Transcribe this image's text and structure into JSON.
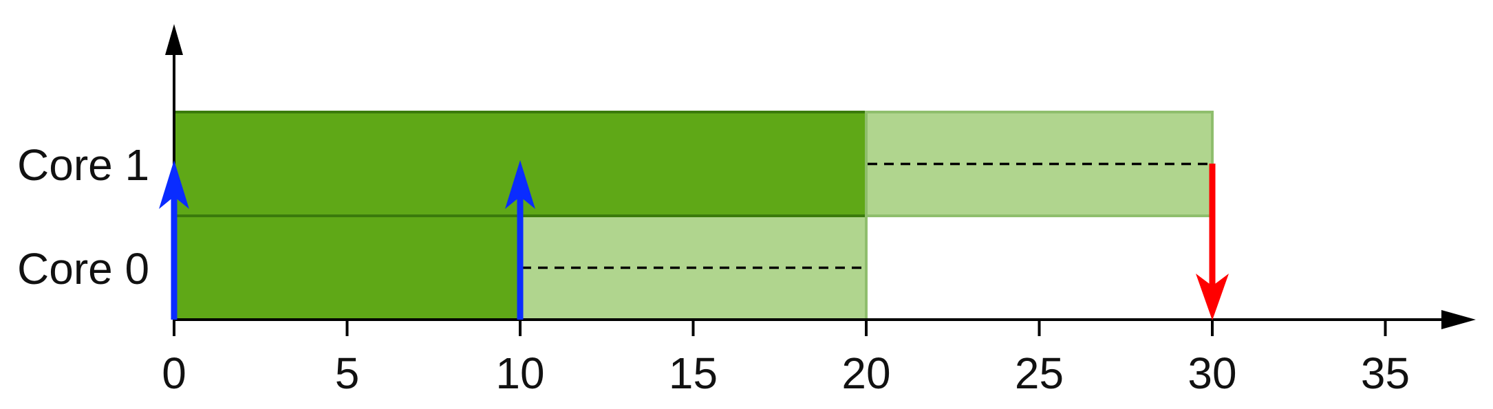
{
  "chart_data": {
    "type": "gantt",
    "x_ticks": [
      "0",
      "5",
      "10",
      "15",
      "20",
      "25",
      "30",
      "35"
    ],
    "x_tick_values": [
      0,
      5,
      10,
      15,
      20,
      25,
      30,
      35
    ],
    "xlim": [
      0,
      37.5
    ],
    "rows": [
      {
        "label": "Core 0"
      },
      {
        "label": "Core 1"
      }
    ],
    "blocks": [
      {
        "row": 0,
        "start": 0,
        "end": 10,
        "style": "executed",
        "dashed_midline": false
      },
      {
        "row": 0,
        "start": 10,
        "end": 20,
        "style": "pending",
        "dashed_midline": true
      },
      {
        "row": 1,
        "start": 0,
        "end": 20,
        "style": "executed",
        "dashed_midline": false
      },
      {
        "row": 1,
        "start": 20,
        "end": 30,
        "style": "pending",
        "dashed_midline": true
      }
    ],
    "arrivals": [
      {
        "t": 0,
        "color": "#0a2cff"
      },
      {
        "t": 10,
        "color": "#0a2cff"
      }
    ],
    "deadlines": [
      {
        "t": 30,
        "color": "#ff0000"
      }
    ]
  },
  "colors": {
    "executed_fill": "#5fa817",
    "executed_stroke": "#3a7a0c",
    "pending_fill": "#b0d58e",
    "pending_stroke": "#8fbe6d",
    "axis": "#000000"
  }
}
